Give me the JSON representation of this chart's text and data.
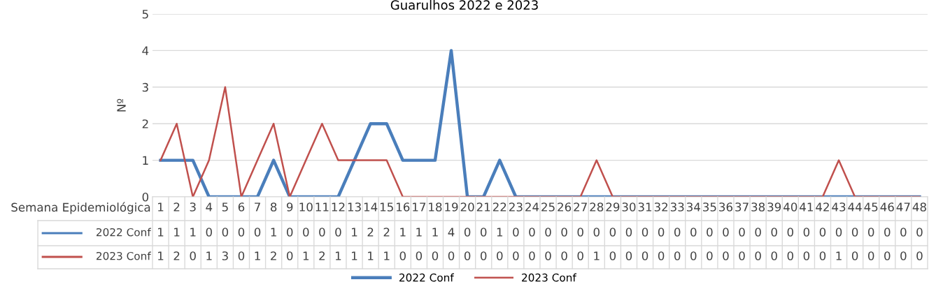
{
  "chart_data": {
    "type": "line",
    "title": "Guarulhos 2022 e 2023",
    "xlabel": "Semana Epidemiológica",
    "ylabel": "Nº",
    "categories": [
      "1",
      "2",
      "3",
      "4",
      "5",
      "6",
      "7",
      "8",
      "9",
      "10",
      "11",
      "12",
      "13",
      "14",
      "15",
      "16",
      "17",
      "18",
      "19",
      "20",
      "21",
      "22",
      "23",
      "24",
      "25",
      "26",
      "27",
      "28",
      "29",
      "30",
      "31",
      "32",
      "33",
      "34",
      "35",
      "36",
      "37",
      "38",
      "39",
      "40",
      "41",
      "42",
      "43",
      "44",
      "45",
      "46",
      "47",
      "48"
    ],
    "series": [
      {
        "name": "2022 Conf",
        "color": "#4a7ebb",
        "values": [
          1,
          1,
          1,
          0,
          0,
          0,
          0,
          1,
          0,
          0,
          0,
          0,
          1,
          2,
          2,
          1,
          1,
          1,
          4,
          0,
          0,
          1,
          0,
          0,
          0,
          0,
          0,
          0,
          0,
          0,
          0,
          0,
          0,
          0,
          0,
          0,
          0,
          0,
          0,
          0,
          0,
          0,
          0,
          0,
          0,
          0,
          0,
          0
        ]
      },
      {
        "name": "2023 Conf",
        "color": "#c0504d",
        "values": [
          1,
          2,
          0,
          1,
          3,
          0,
          1,
          2,
          0,
          1,
          2,
          1,
          1,
          1,
          1,
          0,
          0,
          0,
          0,
          0,
          0,
          0,
          0,
          0,
          0,
          0,
          0,
          1,
          0,
          0,
          0,
          0,
          0,
          0,
          0,
          0,
          0,
          0,
          0,
          0,
          0,
          0,
          1,
          0,
          0,
          0,
          0,
          0
        ]
      }
    ],
    "ylim": [
      0,
      5
    ],
    "yticks": [
      0,
      1,
      2,
      3,
      4,
      5
    ],
    "grid": "y",
    "legend": "bottom",
    "data_labels": true,
    "marker": "none",
    "line_style": "solid"
  }
}
